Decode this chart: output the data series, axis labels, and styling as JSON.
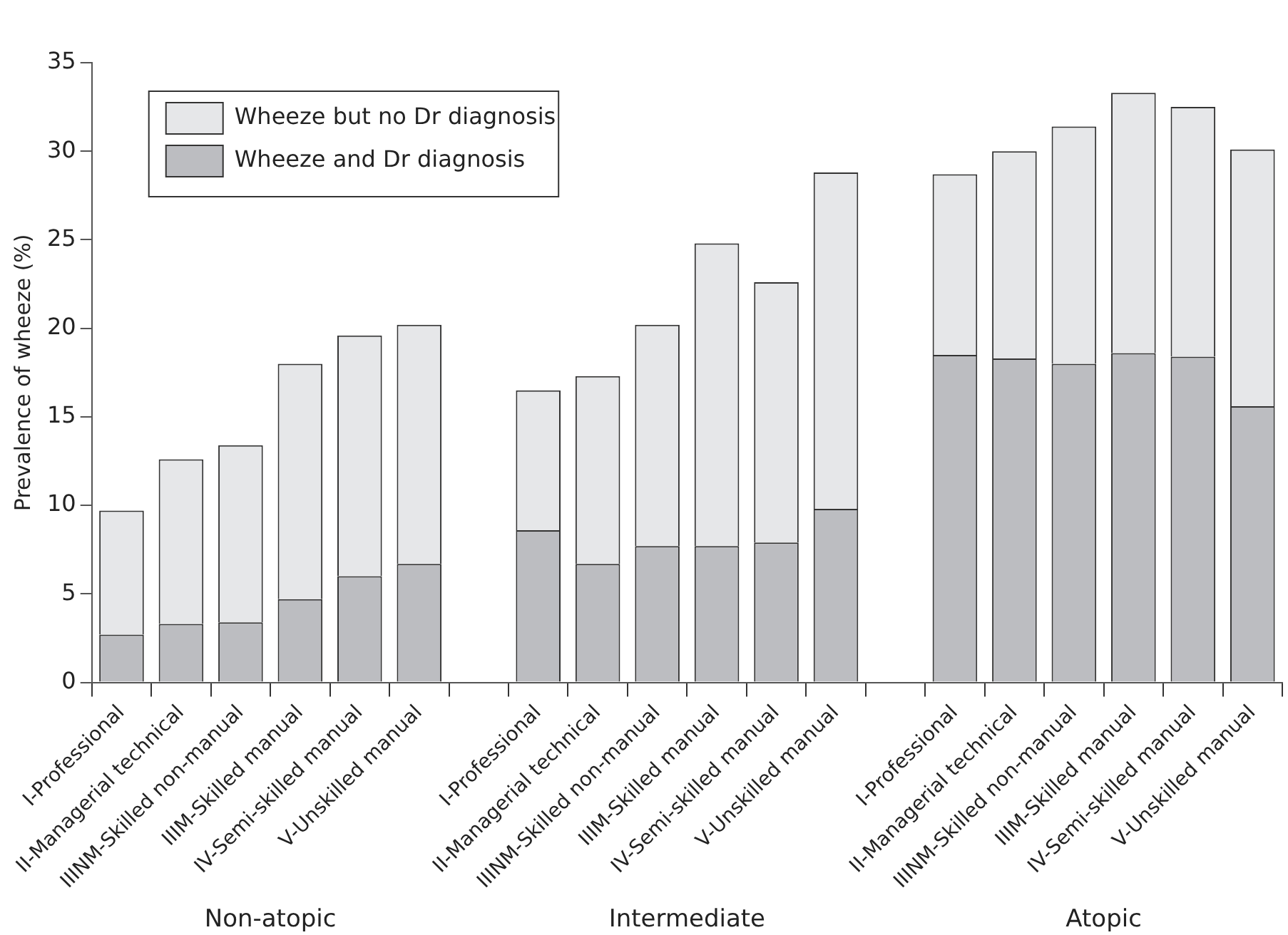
{
  "chart_data": {
    "type": "bar",
    "stacked": true,
    "ylabel": "Prevalence of wheeze (%)",
    "categories": [
      "I-Professional",
      "II-Managerial technical",
      "IIINM-Skilled non-manual",
      "IIIM-Skilled manual",
      "IV-Semi-skilled manual",
      "V-Unskilled manual",
      null,
      "I-Professional",
      "II-Managerial technical",
      "IIINM-Skilled non-manual",
      "IIIM-Skilled manual",
      "IV-Semi-skilled manual",
      "V-Unskilled manual",
      null,
      "I-Professional",
      "II-Managerial technical",
      "IIINM-Skilled non-manual",
      "IIIM-Skilled manual",
      "IV-Semi-skilled manual",
      "V-Unskilled manual"
    ],
    "series": [
      {
        "name": "Wheeze and Dr diagnosis",
        "color": "#bcbdc1",
        "values": [
          2.7,
          3.3,
          3.4,
          4.7,
          6.0,
          6.7,
          null,
          8.6,
          6.7,
          7.7,
          7.7,
          7.9,
          9.8,
          null,
          18.5,
          18.3,
          18.0,
          18.6,
          18.4,
          15.6
        ]
      },
      {
        "name": "Wheeze but no Dr diagnosis",
        "color": "#e6e7e9",
        "values": [
          7.0,
          9.3,
          10.0,
          13.3,
          13.6,
          13.5,
          null,
          7.9,
          10.6,
          12.5,
          17.1,
          14.7,
          19.0,
          null,
          10.2,
          11.7,
          13.4,
          14.7,
          14.1,
          14.5
        ]
      }
    ],
    "ylim": [
      0,
      35
    ],
    "yticks": [
      0,
      5,
      10,
      15,
      20,
      25,
      30,
      35
    ],
    "grid": false,
    "legend": "top left",
    "annotations": [
      "Non-atopic",
      "Intermediate",
      "Atopic"
    ]
  }
}
